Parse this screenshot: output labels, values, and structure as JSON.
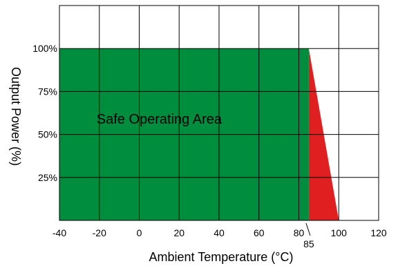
{
  "chart_data": {
    "type": "area",
    "xlabel": "Ambient Temperature (°C)",
    "ylabel": "Output Power (%)",
    "xlim": [
      -40,
      120
    ],
    "ylim": [
      0,
      125
    ],
    "x_ticks": [
      -40,
      -20,
      0,
      20,
      40,
      60,
      80,
      100,
      120
    ],
    "x_tick_labels": [
      "-40",
      "-20",
      "0",
      "20",
      "40",
      "60",
      "80",
      "100",
      "120"
    ],
    "y_ticks": [
      25,
      50,
      75,
      100
    ],
    "y_tick_labels": [
      "25%",
      "50%",
      "75%",
      "100%"
    ],
    "annotations": {
      "derating_start": 85,
      "derating_start_label": "85"
    },
    "grid": true,
    "regions": [
      {
        "label": "Safe Operating Area",
        "color": "#008e3e",
        "points": [
          [
            -40,
            0
          ],
          [
            -40,
            100
          ],
          [
            85,
            100
          ],
          [
            85,
            0
          ]
        ]
      },
      {
        "label": "",
        "color": "#e02020",
        "points": [
          [
            85,
            0
          ],
          [
            85,
            100
          ],
          [
            100,
            0
          ]
        ]
      }
    ]
  }
}
